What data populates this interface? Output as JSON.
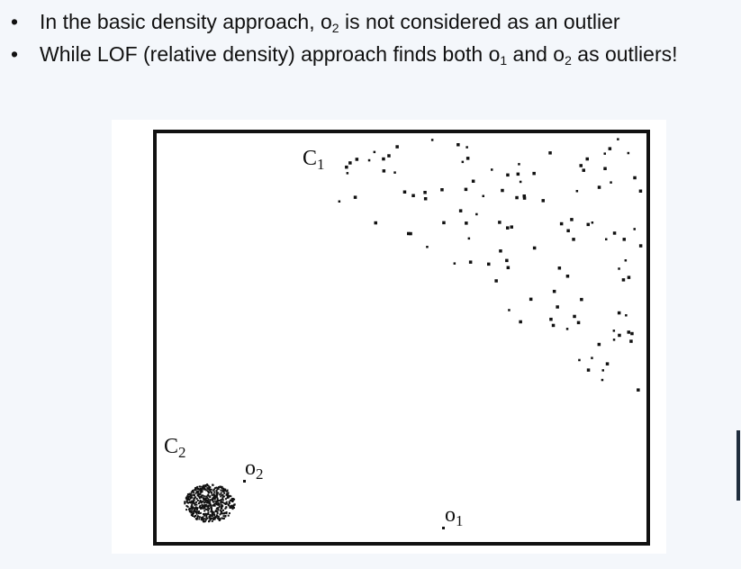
{
  "bullets": [
    {
      "segments": [
        {
          "text": "In the basic density approach, o"
        },
        {
          "text": "2",
          "sub": true
        },
        {
          "text": " is not considered as an outlier"
        }
      ]
    },
    {
      "segments": [
        {
          "text": "While LOF (relative density) approach finds both o"
        },
        {
          "text": "1",
          "sub": true
        },
        {
          "text": " and o"
        },
        {
          "text": "2",
          "sub": true
        },
        {
          "text": " as outliers!"
        }
      ]
    }
  ],
  "bullet_glyph": "•",
  "figure": {
    "labels": {
      "c1": {
        "main": "C",
        "sub": "1"
      },
      "c2": {
        "main": "C",
        "sub": "2"
      },
      "o1": {
        "main": "o",
        "sub": "1"
      },
      "o2": {
        "main": "o",
        "sub": "2"
      }
    }
  }
}
